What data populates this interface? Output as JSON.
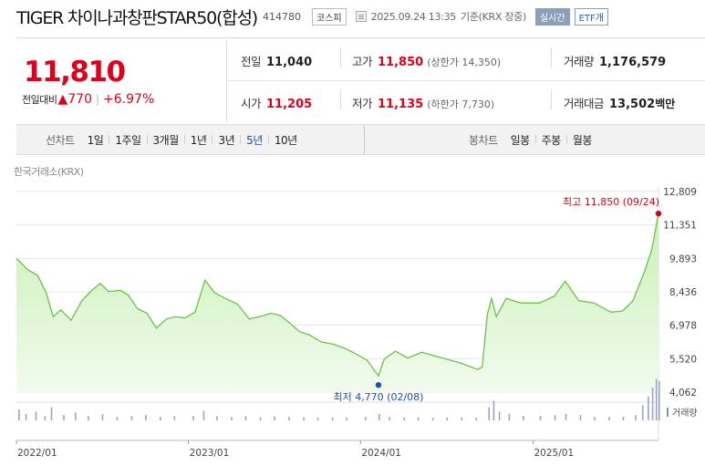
{
  "header": {
    "title": "TIGER 차이나과창판STAR50(합성)",
    "code": "414780",
    "market_badge": "코스피",
    "timestamp": "2025.09.24 13:35",
    "basis": "기준(KRX 장중)",
    "realtime_button": "실시간",
    "etf_badge": "ETF개"
  },
  "quote": {
    "price": "11,810",
    "change_label": "전일대비",
    "change_arrow": "▲",
    "change_amount": "770",
    "separator": "|",
    "change_percent": "+6.97%"
  },
  "stats": {
    "prev_close": {
      "label": "전일",
      "value": "11,040"
    },
    "high": {
      "label": "고가",
      "value": "11,850",
      "sub": "(상한가 14,350)"
    },
    "volume": {
      "label": "거래량",
      "value": "1,176,579"
    },
    "open": {
      "label": "시가",
      "value": "11,205"
    },
    "low": {
      "label": "저가",
      "value": "11,135",
      "sub": "(하한가 7,730)"
    },
    "amount": {
      "label": "거래대금",
      "value": "13,502",
      "unit": "백만"
    }
  },
  "line_chart_tabs": {
    "label": "선차트",
    "items": [
      "1일",
      "1주일",
      "3개월",
      "1년",
      "3년",
      "5년",
      "10년"
    ],
    "selected": "5년"
  },
  "candle_chart_tabs": {
    "label": "봉차트",
    "items": [
      "일봉",
      "주봉",
      "월봉"
    ]
  },
  "source": "한국거래소(KRX)",
  "colors": {
    "up": "#e0001b",
    "low_marker": "#1f4fb0",
    "line": "#6cc24a",
    "area_top": "#c9f0b6",
    "area_bottom": "#f2fbee"
  },
  "chart_data": {
    "type": "area",
    "title": "",
    "y_ticks": [
      "12,809",
      "11,351",
      "9,893",
      "8,436",
      "6,978",
      "5,520",
      "4,062"
    ],
    "ylim": [
      4062,
      12809
    ],
    "x_ticks": [
      "2022/01",
      "2023/01",
      "2024/01",
      "2025/01"
    ],
    "high_annotation": "최고 11,850 (09/24)",
    "low_annotation": "최저 4,770 (02/08)",
    "volume_legend": "거래량",
    "series": [
      {
        "name": "",
        "points": [
          [
            "2022-01-01",
            9900
          ],
          [
            "2022-01-25",
            9400
          ],
          [
            "2022-02-15",
            9150
          ],
          [
            "2022-03-05",
            8400
          ],
          [
            "2022-03-20",
            7350
          ],
          [
            "2022-04-05",
            7650
          ],
          [
            "2022-04-27",
            7200
          ],
          [
            "2022-05-20",
            8050
          ],
          [
            "2022-06-10",
            8500
          ],
          [
            "2022-06-28",
            8800
          ],
          [
            "2022-07-15",
            8450
          ],
          [
            "2022-08-10",
            8500
          ],
          [
            "2022-08-26",
            8300
          ],
          [
            "2022-09-15",
            7700
          ],
          [
            "2022-10-05",
            7500
          ],
          [
            "2022-10-25",
            6850
          ],
          [
            "2022-11-15",
            7250
          ],
          [
            "2022-12-05",
            7350
          ],
          [
            "2022-12-25",
            7300
          ],
          [
            "2023-01-15",
            7550
          ],
          [
            "2023-02-05",
            8950
          ],
          [
            "2023-02-25",
            8400
          ],
          [
            "2023-03-20",
            8150
          ],
          [
            "2023-04-15",
            7900
          ],
          [
            "2023-05-10",
            7250
          ],
          [
            "2023-06-01",
            7350
          ],
          [
            "2023-06-25",
            7500
          ],
          [
            "2023-07-15",
            7400
          ],
          [
            "2023-08-05",
            7050
          ],
          [
            "2023-08-25",
            6700
          ],
          [
            "2023-09-15",
            6550
          ],
          [
            "2023-10-10",
            6250
          ],
          [
            "2023-11-05",
            6150
          ],
          [
            "2023-12-01",
            5950
          ],
          [
            "2023-12-25",
            5700
          ],
          [
            "2024-01-15",
            5450
          ],
          [
            "2024-02-08",
            4770
          ],
          [
            "2024-02-20",
            5500
          ],
          [
            "2024-03-15",
            5850
          ],
          [
            "2024-04-10",
            5550
          ],
          [
            "2024-05-10",
            5800
          ],
          [
            "2024-06-05",
            5650
          ],
          [
            "2024-07-01",
            5500
          ],
          [
            "2024-08-05",
            5300
          ],
          [
            "2024-09-05",
            5050
          ],
          [
            "2024-09-15",
            5150
          ],
          [
            "2024-09-26",
            7450
          ],
          [
            "2024-10-05",
            8150
          ],
          [
            "2024-10-15",
            7350
          ],
          [
            "2024-11-05",
            8150
          ],
          [
            "2024-12-05",
            7950
          ],
          [
            "2025-01-15",
            7950
          ],
          [
            "2025-02-15",
            8250
          ],
          [
            "2025-03-10",
            8900
          ],
          [
            "2025-04-08",
            8050
          ],
          [
            "2025-05-10",
            7950
          ],
          [
            "2025-06-15",
            7550
          ],
          [
            "2025-07-10",
            7600
          ],
          [
            "2025-08-01",
            8050
          ],
          [
            "2025-08-25",
            9300
          ],
          [
            "2025-09-10",
            10300
          ],
          [
            "2025-09-24",
            11850
          ]
        ]
      }
    ],
    "volume_series": [
      [
        "2022-01-05",
        0.25
      ],
      [
        "2022-01-20",
        0.15
      ],
      [
        "2022-02-10",
        0.2
      ],
      [
        "2022-03-01",
        0.1
      ],
      [
        "2022-03-15",
        0.3
      ],
      [
        "2022-04-10",
        0.12
      ],
      [
        "2022-05-05",
        0.18
      ],
      [
        "2022-06-01",
        0.1
      ],
      [
        "2022-07-01",
        0.14
      ],
      [
        "2022-08-01",
        0.08
      ],
      [
        "2022-09-01",
        0.1
      ],
      [
        "2022-10-01",
        0.12
      ],
      [
        "2022-11-01",
        0.08
      ],
      [
        "2022-12-01",
        0.1
      ],
      [
        "2023-01-10",
        0.1
      ],
      [
        "2023-02-01",
        0.22
      ],
      [
        "2023-03-01",
        0.1
      ],
      [
        "2023-04-01",
        0.08
      ],
      [
        "2023-05-01",
        0.1
      ],
      [
        "2023-06-01",
        0.07
      ],
      [
        "2023-07-01",
        0.09
      ],
      [
        "2023-08-01",
        0.08
      ],
      [
        "2023-09-01",
        0.07
      ],
      [
        "2023-10-01",
        0.06
      ],
      [
        "2023-11-01",
        0.07
      ],
      [
        "2023-12-01",
        0.06
      ],
      [
        "2024-01-10",
        0.08
      ],
      [
        "2024-02-08",
        0.15
      ],
      [
        "2024-03-01",
        0.08
      ],
      [
        "2024-04-01",
        0.07
      ],
      [
        "2024-05-01",
        0.07
      ],
      [
        "2024-06-01",
        0.06
      ],
      [
        "2024-07-01",
        0.06
      ],
      [
        "2024-08-01",
        0.07
      ],
      [
        "2024-09-01",
        0.06
      ],
      [
        "2024-09-28",
        0.3
      ],
      [
        "2024-10-08",
        0.45
      ],
      [
        "2024-10-20",
        0.2
      ],
      [
        "2024-11-10",
        0.15
      ],
      [
        "2024-12-10",
        0.1
      ],
      [
        "2025-01-15",
        0.1
      ],
      [
        "2025-02-15",
        0.12
      ],
      [
        "2025-03-10",
        0.15
      ],
      [
        "2025-04-10",
        0.12
      ],
      [
        "2025-05-10",
        0.08
      ],
      [
        "2025-06-10",
        0.08
      ],
      [
        "2025-07-10",
        0.08
      ],
      [
        "2025-08-05",
        0.12
      ],
      [
        "2025-08-20",
        0.35
      ],
      [
        "2025-09-01",
        0.55
      ],
      [
        "2025-09-10",
        0.75
      ],
      [
        "2025-09-18",
        0.95
      ],
      [
        "2025-09-24",
        0.9
      ]
    ]
  }
}
